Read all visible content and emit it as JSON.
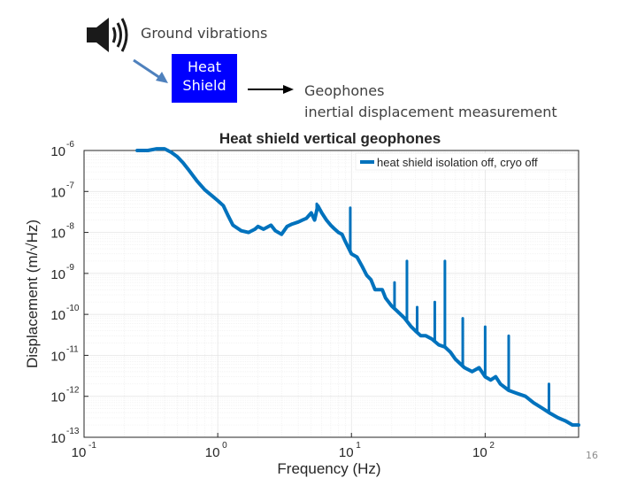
{
  "header": {
    "ground_label": "Ground vibrations",
    "shield_line1": "Heat",
    "shield_line2": "Shield",
    "geophones_line1": "Geophones",
    "geophones_line2": "inertial displacement measurement",
    "speaker_icon": "speaker-icon",
    "colors": {
      "shield_fill": "#0000ff",
      "arrow": "#4f81bd"
    }
  },
  "page_number": "16",
  "chart_data": {
    "type": "line",
    "title": "Heat shield vertical geophones",
    "xlabel": "Frequency (Hz)",
    "ylabel": "Displacement (m/√Hz)",
    "x_scale": "log",
    "y_scale": "log",
    "xlim": [
      0.1,
      500
    ],
    "ylim": [
      1e-13,
      1e-06
    ],
    "x_ticks": [
      {
        "base": "10",
        "exp": "-1"
      },
      {
        "base": "10",
        "exp": "0"
      },
      {
        "base": "10",
        "exp": "1"
      },
      {
        "base": "10",
        "exp": "2"
      }
    ],
    "y_ticks": [
      {
        "base": "10",
        "exp": "-6"
      },
      {
        "base": "10",
        "exp": "-7"
      },
      {
        "base": "10",
        "exp": "-8"
      },
      {
        "base": "10",
        "exp": "-9"
      },
      {
        "base": "10",
        "exp": "-10"
      },
      {
        "base": "10",
        "exp": "-11"
      },
      {
        "base": "10",
        "exp": "-12"
      },
      {
        "base": "10",
        "exp": "-13"
      }
    ],
    "grid": true,
    "legend_position": "top-right",
    "series": [
      {
        "name": "heat shield isolation off, cryo off",
        "color": "#0072bd",
        "x": [
          0.25,
          0.3,
          0.35,
          0.4,
          0.45,
          0.5,
          0.55,
          0.6,
          0.7,
          0.8,
          0.9,
          1.0,
          1.1,
          1.2,
          1.3,
          1.5,
          1.7,
          1.9,
          2.0,
          2.2,
          2.5,
          2.7,
          3.0,
          3.3,
          3.6,
          4.0,
          4.3,
          4.6,
          5.0,
          5.3,
          5.6,
          6.0,
          6.5,
          7.0,
          7.5,
          8.0,
          8.5,
          9.0,
          10,
          11,
          12,
          13,
          14,
          15,
          17,
          18,
          20,
          22,
          25,
          28,
          30,
          33,
          36,
          40,
          45,
          50,
          55,
          60,
          70,
          80,
          90,
          100,
          110,
          120,
          130,
          150,
          170,
          200,
          230,
          270,
          300,
          350,
          400,
          450,
          500
        ],
        "y": [
          1e-06,
          1e-06,
          1.1e-06,
          1.1e-06,
          9e-07,
          7e-07,
          5e-07,
          3.5e-07,
          1.8e-07,
          1.1e-07,
          8e-08,
          6e-08,
          4.5e-08,
          2.5e-08,
          1.5e-08,
          1.1e-08,
          1e-08,
          1.2e-08,
          1.4e-08,
          1.2e-08,
          1.5e-08,
          1.1e-08,
          9e-09,
          1.4e-08,
          1.6e-08,
          1.8e-08,
          2e-08,
          2.2e-08,
          3e-08,
          2e-08,
          4.5e-08,
          3e-08,
          2e-08,
          1.5e-08,
          1.2e-08,
          1e-08,
          9e-09,
          6e-09,
          3e-09,
          2.5e-09,
          1.5e-09,
          9e-10,
          7e-10,
          4e-10,
          4e-10,
          2.5e-10,
          1.6e-10,
          1.2e-10,
          8e-11,
          5e-11,
          4e-11,
          3e-11,
          3e-11,
          2.5e-11,
          1.8e-11,
          1.6e-11,
          1.2e-11,
          8e-12,
          5e-12,
          4e-12,
          5e-12,
          3e-12,
          2.5e-12,
          3e-12,
          2e-12,
          1.4e-12,
          1.2e-12,
          1e-12,
          7e-13,
          5e-13,
          4e-13,
          3e-13,
          2.5e-13,
          2e-13,
          2e-13
        ]
      }
    ],
    "spikes": {
      "x": [
        5.5,
        9.8,
        21,
        26,
        31,
        42,
        50,
        68,
        100,
        150,
        300
      ],
      "y": [
        5e-08,
        4e-08,
        6e-10,
        2e-09,
        1.5e-10,
        2e-10,
        2e-09,
        8e-11,
        5e-11,
        3e-11,
        2e-12
      ]
    }
  }
}
